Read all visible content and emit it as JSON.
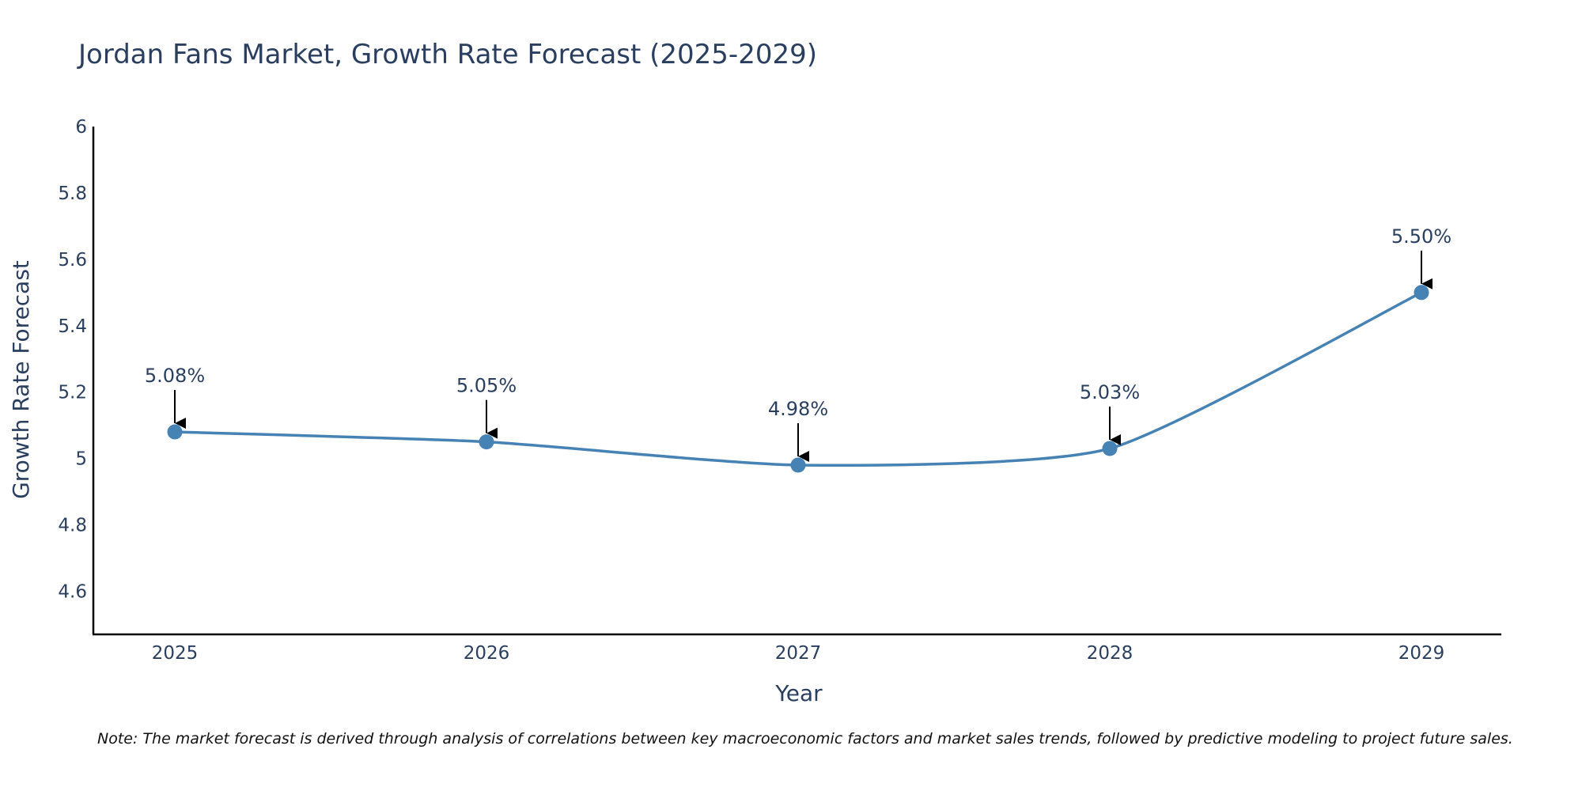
{
  "chart_data": {
    "type": "line",
    "title": "Jordan Fans Market, Growth Rate Forecast (2025-2029)",
    "xlabel": "Year",
    "ylabel": "Growth Rate Forecast",
    "categories": [
      "2025",
      "2026",
      "2027",
      "2028",
      "2029"
    ],
    "series": [
      {
        "name": "Growth Rate Forecast",
        "values": [
          5.08,
          5.05,
          4.98,
          5.03,
          5.5
        ],
        "labels": [
          "5.08%",
          "5.05%",
          "4.98%",
          "5.03%",
          "5.50%"
        ]
      }
    ],
    "ylim": [
      4.47,
      6.0
    ],
    "yticks": [
      4.6,
      4.8,
      5,
      5.2,
      5.4,
      5.6,
      5.8,
      6
    ],
    "ytick_labels": [
      "4.6",
      "4.8",
      "5",
      "5.2",
      "5.4",
      "5.6",
      "5.8",
      "6"
    ],
    "line_shape": "spline",
    "grid": false,
    "note": "Note: The market forecast is derived through analysis of correlations between key macroeconomic factors and market sales trends, followed by predictive modeling to project future sales."
  },
  "colors": {
    "line": "#4682b4",
    "marker": "#4682b4",
    "axis": "#000000",
    "arrow": "#000000",
    "text": "#2a3f5f"
  }
}
